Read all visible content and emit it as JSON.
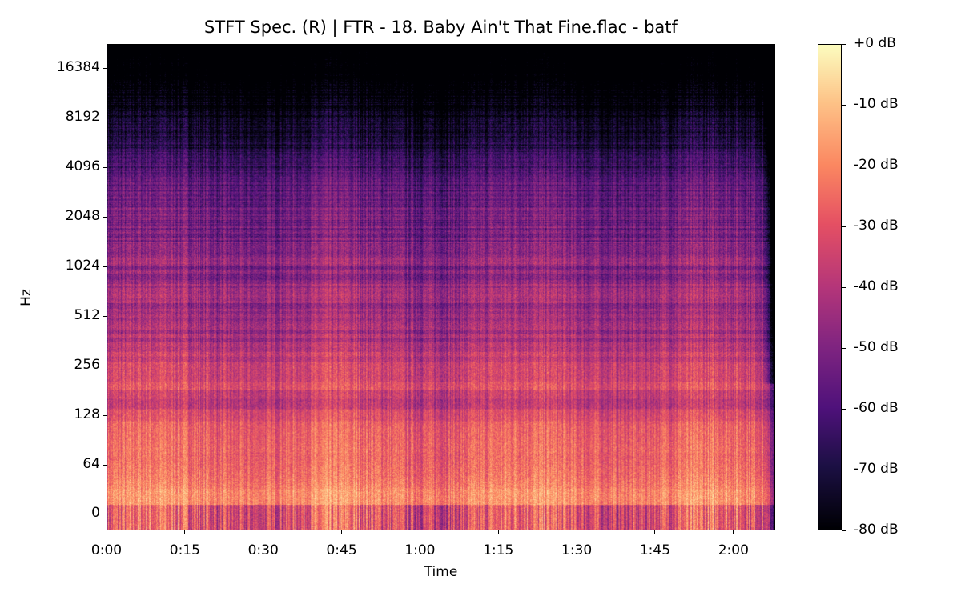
{
  "chart_data": {
    "type": "heatmap",
    "title": "STFT Spec. (R) | FTR - 18. Baby Ain't That Fine.flac - batf",
    "xlabel": "Time",
    "ylabel": "Hz",
    "x_ticks": [
      "0:00",
      "0:15",
      "0:30",
      "0:45",
      "1:00",
      "1:15",
      "1:30",
      "1:45",
      "2:00"
    ],
    "x_tick_seconds": [
      0,
      15,
      30,
      45,
      60,
      75,
      90,
      105,
      120
    ],
    "xlim_seconds": [
      0,
      128
    ],
    "y_scale": "symlog",
    "y_ticks": [
      "0",
      "64",
      "128",
      "256",
      "512",
      "1024",
      "2048",
      "4096",
      "8192",
      "16384"
    ],
    "y_tick_values": [
      0,
      64,
      128,
      256,
      512,
      1024,
      2048,
      4096,
      8192,
      16384
    ],
    "ylim_hz": [
      0,
      22050
    ],
    "colormap": "magma",
    "colorbar": {
      "range_db": [
        -80,
        0
      ],
      "ticks": [
        "+0 dB",
        "-10 dB",
        "-20 dB",
        "-30 dB",
        "-40 dB",
        "-50 dB",
        "-60 dB",
        "-70 dB",
        "-80 dB"
      ],
      "tick_values": [
        0,
        -10,
        -20,
        -30,
        -40,
        -50,
        -60,
        -70,
        -80
      ]
    }
  }
}
